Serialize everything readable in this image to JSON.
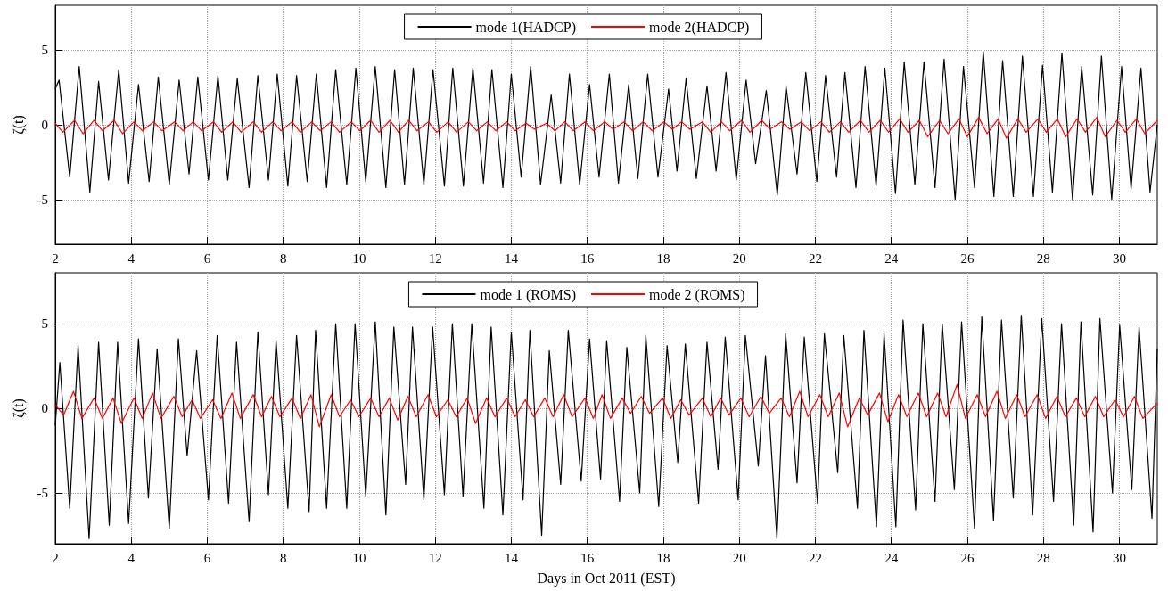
{
  "chart_data": [
    {
      "type": "line",
      "ylabel": "ζ(t)",
      "xlim": [
        2,
        31
      ],
      "xticks": [
        2,
        4,
        6,
        8,
        10,
        12,
        14,
        16,
        18,
        20,
        22,
        24,
        26,
        28,
        30
      ],
      "ylim": [
        -8,
        8
      ],
      "yticks": [
        -5,
        0,
        5
      ],
      "grid": true,
      "legend": "top",
      "marker": "none",
      "line_style": "solid",
      "series": [
        {
          "name": "mode 1(HADCP)",
          "color": "#000000",
          "x": [
            2.0,
            2.1,
            2.38,
            2.63,
            2.91,
            3.14,
            3.4,
            3.67,
            3.93,
            4.19,
            4.47,
            4.71,
            5.0,
            5.26,
            5.52,
            5.75,
            6.03,
            6.28,
            6.54,
            6.79,
            7.1,
            7.33,
            7.61,
            7.84,
            8.12,
            8.35,
            8.63,
            8.87,
            9.14,
            9.38,
            9.67,
            9.91,
            10.17,
            10.42,
            10.7,
            10.93,
            11.19,
            11.42,
            11.7,
            11.94,
            12.24,
            12.46,
            12.74,
            12.99,
            13.27,
            13.49,
            13.78,
            14.0,
            14.26,
            14.51,
            14.77,
            15.05,
            15.3,
            15.53,
            15.8,
            16.06,
            16.31,
            16.58,
            16.82,
            17.09,
            17.33,
            17.59,
            17.86,
            18.14,
            18.36,
            18.6,
            18.87,
            19.15,
            19.39,
            19.65,
            19.92,
            20.18,
            20.43,
            20.71,
            21.0,
            21.23,
            21.52,
            21.75,
            22.04,
            22.27,
            22.56,
            22.78,
            23.07,
            23.31,
            23.6,
            23.83,
            24.11,
            24.34,
            24.62,
            24.86,
            25.15,
            25.39,
            25.68,
            25.9,
            26.19,
            26.42,
            26.7,
            26.93,
            27.21,
            27.45,
            27.74,
            27.98,
            28.24,
            28.49,
            28.77,
            29.01,
            29.3,
            29.53,
            29.8,
            30.06,
            30.31,
            30.57,
            30.81,
            31.0
          ],
          "values": [
            2.4,
            3.0,
            -3.5,
            3.9,
            -4.5,
            2.9,
            -3.7,
            3.7,
            -3.9,
            2.7,
            -3.8,
            3.2,
            -4.0,
            3.0,
            -3.3,
            3.2,
            -3.7,
            3.3,
            -3.7,
            3.1,
            -4.2,
            3.3,
            -3.7,
            3.4,
            -4.1,
            3.3,
            -3.8,
            3.4,
            -4.2,
            3.7,
            -4.0,
            3.8,
            -3.8,
            3.9,
            -4.2,
            3.7,
            -4.0,
            3.8,
            -4.0,
            3.7,
            -4.1,
            3.8,
            -4.1,
            3.8,
            -3.9,
            3.7,
            -4.2,
            3.4,
            -3.5,
            3.9,
            -4.0,
            2.0,
            -3.9,
            3.4,
            -4.0,
            2.7,
            -3.5,
            3.4,
            -3.9,
            2.7,
            -3.6,
            3.4,
            -3.5,
            2.4,
            -3.1,
            3.1,
            -3.6,
            2.6,
            -3.1,
            3.5,
            -3.7,
            3.0,
            -2.6,
            2.3,
            -4.7,
            2.6,
            -3.3,
            3.5,
            -3.8,
            3.3,
            -3.5,
            3.5,
            -4.2,
            3.9,
            -4.1,
            3.8,
            -4.6,
            4.2,
            -4.0,
            4.2,
            -4.2,
            4.4,
            -5.0,
            3.9,
            -4.2,
            4.9,
            -4.8,
            4.3,
            -4.8,
            4.6,
            -4.8,
            4.0,
            -4.5,
            4.8,
            -5.0,
            3.9,
            -4.7,
            4.6,
            -5.0,
            3.9,
            -4.3,
            3.8,
            -4.5,
            0.0
          ]
        },
        {
          "name": "mode 2(HADCP)",
          "color": "#ff0000",
          "x": [
            2.0,
            2.2,
            2.51,
            2.73,
            3.02,
            3.24,
            3.55,
            3.77,
            4.07,
            4.29,
            4.59,
            4.81,
            5.14,
            5.36,
            5.63,
            5.85,
            6.16,
            6.38,
            6.67,
            6.89,
            7.21,
            7.43,
            7.72,
            7.94,
            8.23,
            8.45,
            8.75,
            8.97,
            9.26,
            9.48,
            9.79,
            10.01,
            10.3,
            10.52,
            10.81,
            11.03,
            11.3,
            11.52,
            11.82,
            12.04,
            12.34,
            12.56,
            12.87,
            13.09,
            13.37,
            13.59,
            13.88,
            14.1,
            14.39,
            14.61,
            14.93,
            15.15,
            15.41,
            15.63,
            15.94,
            16.16,
            16.46,
            16.68,
            16.97,
            17.19,
            17.47,
            17.71,
            18.02,
            18.24,
            18.48,
            18.7,
            19.03,
            19.25,
            19.53,
            19.75,
            20.06,
            20.28,
            20.59,
            20.81,
            21.11,
            21.33,
            21.63,
            21.85,
            22.15,
            22.37,
            22.66,
            22.88,
            23.19,
            23.41,
            23.71,
            23.93,
            24.22,
            24.44,
            24.74,
            24.96,
            25.27,
            25.49,
            25.78,
            26.0,
            26.3,
            26.52,
            26.81,
            27.03,
            27.33,
            27.55,
            27.86,
            28.08,
            28.37,
            28.59,
            28.89,
            29.11,
            29.41,
            29.63,
            29.94,
            30.16,
            30.45,
            30.67,
            31.0
          ],
          "values": [
            0.1,
            -0.5,
            0.3,
            -0.6,
            0.3,
            -0.4,
            0.3,
            -0.6,
            0.2,
            -0.4,
            0.2,
            -0.4,
            0.2,
            -0.4,
            0.2,
            -0.4,
            0.2,
            -0.5,
            0.2,
            -0.5,
            0.2,
            -0.5,
            0.2,
            -0.4,
            0.2,
            -0.5,
            0.2,
            -0.4,
            0.2,
            -0.5,
            0.2,
            -0.4,
            0.3,
            -0.5,
            0.3,
            -0.5,
            0.3,
            -0.4,
            0.2,
            -0.5,
            0.2,
            -0.5,
            0.2,
            -0.4,
            0.2,
            -0.4,
            0.2,
            -0.4,
            0.1,
            -0.3,
            0.1,
            -0.4,
            0.2,
            -0.4,
            0.2,
            -0.4,
            0.2,
            -0.3,
            0.2,
            -0.4,
            0.2,
            -0.4,
            0.2,
            -0.3,
            0.2,
            -0.3,
            0.2,
            -0.5,
            0.2,
            -0.4,
            0.3,
            -0.5,
            0.3,
            -0.3,
            0.2,
            -0.3,
            0.2,
            -0.4,
            0.2,
            -0.5,
            0.2,
            -0.5,
            0.3,
            -0.5,
            0.3,
            -0.5,
            0.4,
            -0.5,
            0.3,
            -0.8,
            0.3,
            -0.6,
            0.4,
            -0.8,
            0.5,
            -0.6,
            0.4,
            -0.9,
            0.4,
            -0.5,
            0.4,
            -0.5,
            0.4,
            -0.8,
            0.4,
            -0.5,
            0.5,
            -0.8,
            0.3,
            -0.5,
            0.4,
            -0.6,
            0.3
          ]
        }
      ]
    },
    {
      "type": "line",
      "xlabel": "Days in Oct 2011 (EST)",
      "ylabel": "ζ(t)",
      "xlim": [
        2,
        31
      ],
      "xticks": [
        2,
        4,
        6,
        8,
        10,
        12,
        14,
        16,
        18,
        20,
        22,
        24,
        26,
        28,
        30
      ],
      "ylim": [
        -8,
        8
      ],
      "yticks": [
        -5,
        0,
        5
      ],
      "grid": true,
      "legend": "top",
      "marker": "none",
      "line_style": "solid",
      "series": [
        {
          "name": "mode 1 (ROMS)",
          "color": "#000000",
          "x": [
            2.0,
            2.12,
            2.38,
            2.6,
            2.89,
            3.14,
            3.42,
            3.64,
            3.93,
            4.19,
            4.45,
            4.68,
            5.0,
            5.24,
            5.47,
            5.72,
            6.03,
            6.26,
            6.56,
            6.77,
            7.1,
            7.33,
            7.61,
            7.81,
            8.12,
            8.35,
            8.68,
            8.85,
            9.14,
            9.38,
            9.67,
            9.89,
            10.17,
            10.42,
            10.7,
            10.91,
            11.22,
            11.4,
            11.7,
            11.93,
            12.24,
            12.45,
            12.73,
            12.96,
            13.28,
            13.47,
            13.78,
            14.0,
            14.31,
            14.49,
            14.8,
            15.0,
            15.3,
            15.5,
            15.84,
            16.06,
            16.35,
            16.51,
            16.85,
            17.04,
            17.38,
            17.54,
            17.88,
            18.1,
            18.38,
            18.58,
            18.93,
            19.15,
            19.44,
            19.63,
            19.97,
            20.16,
            20.5,
            20.69,
            20.99,
            21.22,
            21.52,
            21.71,
            22.06,
            22.24,
            22.59,
            22.75,
            23.11,
            23.28,
            23.61,
            23.81,
            24.12,
            24.31,
            24.64,
            24.83,
            25.15,
            25.34,
            25.66,
            25.85,
            26.19,
            26.38,
            26.69,
            26.9,
            27.21,
            27.42,
            27.72,
            27.96,
            28.27,
            28.48,
            28.8,
            28.99,
            29.31,
            29.49,
            29.82,
            30.01,
            30.33,
            30.52,
            30.86,
            31.0
          ],
          "values": [
            -1.0,
            2.7,
            -5.9,
            3.7,
            -7.7,
            3.9,
            -6.9,
            3.9,
            -6.8,
            4.1,
            -5.3,
            3.5,
            -7.1,
            4.1,
            -2.8,
            3.4,
            -5.4,
            4.3,
            -5.6,
            3.9,
            -6.7,
            4.5,
            -5.1,
            4.0,
            -5.9,
            4.3,
            -6.1,
            4.6,
            -5.9,
            5.0,
            -5.9,
            5.0,
            -5.2,
            5.1,
            -6.3,
            4.8,
            -4.5,
            4.8,
            -5.4,
            4.8,
            -5.1,
            5.0,
            -5.2,
            5.0,
            -5.9,
            4.8,
            -6.3,
            4.5,
            -5.4,
            4.6,
            -7.5,
            3.4,
            -4.5,
            4.6,
            -4.3,
            4.1,
            -4.2,
            4.0,
            -5.5,
            3.6,
            -5.0,
            4.3,
            -5.8,
            3.7,
            -3.2,
            3.8,
            -5.6,
            3.9,
            -3.6,
            4.2,
            -5.4,
            4.3,
            -3.4,
            3.1,
            -7.7,
            4.4,
            -4.4,
            4.2,
            -5.6,
            4.4,
            -3.8,
            4.3,
            -5.9,
            4.6,
            -7.0,
            4.4,
            -7.0,
            5.2,
            -6.0,
            5.0,
            -5.5,
            5.0,
            -4.8,
            5.1,
            -7.1,
            5.4,
            -6.6,
            5.2,
            -5.3,
            5.5,
            -6.3,
            5.3,
            -5.5,
            5.0,
            -6.9,
            5.1,
            -7.3,
            5.3,
            -5.0,
            4.9,
            -4.8,
            4.8,
            -6.5,
            3.5
          ]
        },
        {
          "name": "mode 2 (ROMS)",
          "color": "#ff0000",
          "x": [
            2.0,
            2.22,
            2.48,
            2.7,
            3.02,
            3.24,
            3.52,
            3.74,
            4.07,
            4.29,
            4.56,
            4.78,
            5.12,
            5.34,
            5.6,
            5.82,
            6.14,
            6.36,
            6.65,
            6.87,
            7.21,
            7.43,
            7.69,
            7.91,
            8.23,
            8.45,
            8.73,
            8.95,
            9.26,
            9.48,
            9.77,
            9.99,
            10.3,
            10.52,
            10.79,
            11.01,
            11.28,
            11.5,
            11.81,
            12.03,
            12.33,
            12.55,
            12.84,
            13.06,
            13.35,
            13.57,
            13.88,
            14.1,
            14.37,
            14.59,
            14.88,
            15.1,
            15.38,
            15.6,
            15.94,
            16.16,
            16.39,
            16.61,
            16.92,
            17.14,
            17.42,
            17.64,
            17.98,
            18.2,
            18.46,
            18.68,
            19.03,
            19.25,
            19.51,
            19.73,
            20.04,
            20.26,
            20.57,
            20.79,
            21.1,
            21.32,
            21.59,
            21.81,
            22.12,
            22.34,
            22.63,
            22.85,
            23.16,
            23.38,
            23.69,
            23.91,
            24.19,
            24.41,
            24.71,
            24.93,
            25.22,
            25.44,
            25.73,
            25.95,
            26.26,
            26.48,
            26.78,
            27.0,
            27.3,
            27.52,
            27.84,
            28.06,
            28.36,
            28.58,
            28.87,
            29.09,
            29.37,
            29.59,
            29.89,
            30.11,
            30.4,
            30.62,
            31.0
          ],
          "values": [
            0.2,
            -0.4,
            1.0,
            -0.6,
            0.6,
            -0.6,
            0.6,
            -0.9,
            0.6,
            -0.6,
            0.9,
            -0.6,
            0.7,
            -0.5,
            0.5,
            -0.6,
            0.5,
            -0.6,
            0.9,
            -0.6,
            0.8,
            -0.5,
            0.7,
            -0.5,
            0.6,
            -0.6,
            0.8,
            -1.1,
            0.8,
            -0.5,
            0.5,
            -0.5,
            0.6,
            -0.5,
            0.6,
            -0.7,
            0.7,
            -0.5,
            0.8,
            -0.5,
            0.5,
            -0.5,
            0.6,
            -0.9,
            0.6,
            -0.5,
            0.6,
            -0.5,
            0.5,
            -0.5,
            0.6,
            -0.5,
            0.8,
            -0.5,
            0.6,
            -0.6,
            0.8,
            -0.6,
            0.6,
            -0.3,
            0.7,
            -0.3,
            0.6,
            -0.6,
            0.5,
            -0.4,
            0.6,
            -0.5,
            0.6,
            -0.4,
            0.6,
            -0.5,
            0.7,
            -0.3,
            0.6,
            -0.5,
            1.0,
            -0.5,
            0.8,
            -0.5,
            0.9,
            -1.1,
            0.6,
            -0.4,
            0.9,
            -0.8,
            0.8,
            -0.5,
            0.9,
            -0.5,
            0.9,
            -0.5,
            1.4,
            -0.6,
            0.8,
            -0.5,
            1.0,
            -0.6,
            0.8,
            -0.5,
            0.8,
            -0.6,
            0.7,
            -0.5,
            0.6,
            -0.5,
            0.7,
            -0.5,
            0.5,
            -0.5,
            0.7,
            -0.6,
            0.3
          ]
        }
      ]
    }
  ]
}
